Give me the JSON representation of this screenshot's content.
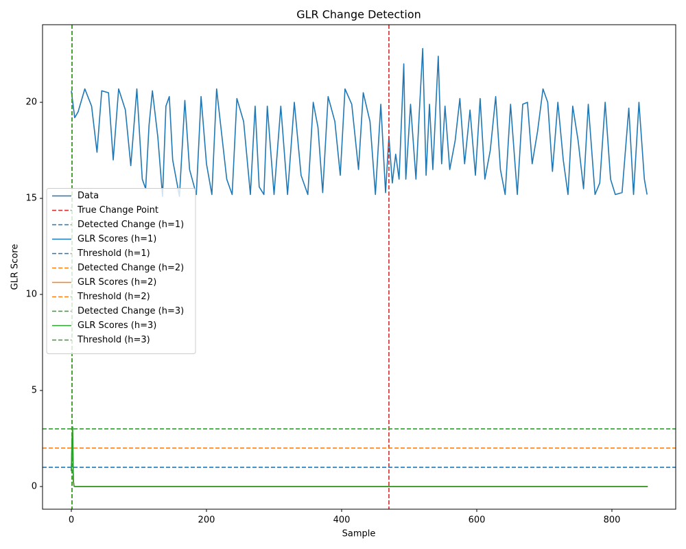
{
  "chart_data": {
    "type": "line",
    "title": "GLR Change Detection",
    "xlabel": "Sample",
    "ylabel": "GLR Score",
    "xlim": [
      -42.6,
      894.4
    ],
    "ylim": [
      -1.18,
      24.04
    ],
    "xticks": [
      0,
      200,
      400,
      600,
      800
    ],
    "yticks": [
      0,
      5,
      10,
      15,
      20
    ],
    "grid": false,
    "legend": "center left",
    "series": [
      {
        "name": "Data",
        "color": "#1f77b4",
        "dash": false,
        "x": [
          0,
          5,
          10,
          20,
          30,
          38,
          45,
          55,
          62,
          70,
          80,
          88,
          97,
          105,
          110,
          115,
          120,
          128,
          135,
          140,
          145,
          150,
          160,
          168,
          175,
          185,
          192,
          200,
          208,
          215,
          222,
          230,
          238,
          245,
          255,
          265,
          272,
          278,
          285,
          290,
          300,
          310,
          320,
          330,
          340,
          350,
          358,
          365,
          372,
          380,
          390,
          398,
          405,
          415,
          425,
          432,
          442,
          450,
          458,
          465,
          470,
          475,
          480,
          485,
          492,
          495,
          502,
          510,
          515,
          520,
          525,
          530,
          535,
          543,
          548,
          553,
          560,
          568,
          575,
          582,
          590,
          598,
          605,
          612,
          620,
          628,
          635,
          642,
          650,
          660,
          668,
          675,
          682,
          690,
          698,
          705,
          712,
          720,
          728,
          735,
          742,
          750,
          758,
          765,
          775,
          782,
          790,
          798,
          805,
          815,
          825,
          832,
          840,
          848,
          852
        ],
        "values": [
          20.6,
          19.2,
          19.5,
          20.7,
          19.8,
          17.4,
          20.6,
          20.5,
          17.0,
          20.7,
          19.6,
          16.7,
          20.7,
          16.0,
          15.5,
          18.8,
          20.6,
          18.2,
          15.1,
          19.8,
          20.3,
          17.0,
          15.1,
          20.1,
          16.5,
          15.2,
          20.3,
          16.8,
          15.2,
          20.7,
          18.5,
          16.0,
          15.2,
          20.2,
          19.0,
          15.2,
          19.8,
          15.6,
          15.2,
          19.8,
          15.2,
          19.8,
          15.2,
          20.0,
          16.2,
          15.2,
          20.0,
          18.7,
          15.3,
          20.3,
          19.0,
          16.2,
          20.7,
          19.9,
          16.5,
          20.5,
          19.0,
          15.2,
          19.9,
          15.3,
          18.2,
          15.8,
          17.3,
          16.0,
          22.0,
          16.0,
          19.9,
          16.0,
          19.5,
          22.8,
          16.2,
          19.9,
          16.5,
          22.4,
          16.8,
          19.8,
          16.5,
          18.0,
          20.2,
          16.8,
          19.6,
          16.2,
          20.2,
          16.0,
          17.5,
          20.3,
          16.5,
          15.2,
          19.9,
          15.2,
          19.9,
          20.0,
          16.8,
          18.5,
          20.7,
          20.0,
          16.4,
          20.0,
          17.0,
          15.2,
          19.8,
          18.0,
          15.5,
          19.9,
          15.2,
          15.8,
          20.0,
          16.0,
          15.2,
          15.3,
          19.7,
          15.2,
          20.0,
          16.0,
          15.2
        ]
      },
      {
        "name": "True Change Point",
        "color": "#d62728",
        "dash": true,
        "vline": 470
      },
      {
        "name": "Detected Change (h=1)",
        "color": "#1f77b4",
        "dash": true,
        "vline": 1
      },
      {
        "name": "GLR Scores (h=1)",
        "color": "#1f77b4",
        "dash": false,
        "x": [
          0,
          1,
          2,
          3,
          4,
          5,
          853
        ],
        "values": [
          0.8,
          2.0,
          2.6,
          0.3,
          0.02,
          0,
          0
        ]
      },
      {
        "name": "Threshold (h=1)",
        "color": "#1f77b4",
        "dash": true,
        "hline": 1
      },
      {
        "name": "Detected Change (h=2)",
        "color": "#ff7f0e",
        "dash": true,
        "vline": 1
      },
      {
        "name": "GLR Scores (h=2)",
        "color": "#ff7f0e",
        "dash": false,
        "x": [
          0,
          1,
          2,
          3,
          4,
          5,
          853
        ],
        "values": [
          0.8,
          2.2,
          2.8,
          0.3,
          0.02,
          0,
          0
        ]
      },
      {
        "name": "Threshold (h=2)",
        "color": "#ff7f0e",
        "dash": true,
        "hline": 2
      },
      {
        "name": "Detected Change (h=3)",
        "color": "#2ca02c",
        "dash": true,
        "vline": 1
      },
      {
        "name": "GLR Scores (h=3)",
        "color": "#2ca02c",
        "dash": false,
        "x": [
          0,
          1,
          2,
          3,
          4,
          5,
          853
        ],
        "values": [
          0.8,
          2.5,
          3.1,
          0.3,
          0.02,
          0,
          0
        ]
      },
      {
        "name": "Threshold (h=3)",
        "color": "#2ca02c",
        "dash": true,
        "hline": 3
      }
    ]
  }
}
